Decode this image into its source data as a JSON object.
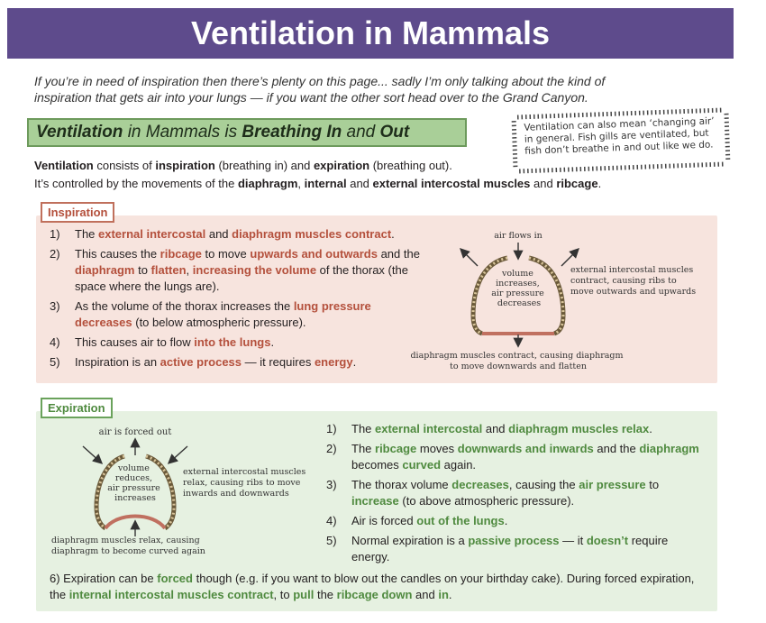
{
  "title": "Ventilation in Mammals",
  "intro": "If you’re in need of inspiration then there’s plenty on this page... sadly I’m only talking about the kind of inspiration that gets air into your lungs — if you want the other sort head over to the Grand Canyon.",
  "subheading": {
    "p1": "Ventilation",
    "p2": " in Mammals is ",
    "p3": "Breathing In",
    "p4": " and ",
    "p5": "Out"
  },
  "side_note": "Ventilation can also mean ‘changing air’ in general. Fish gills are ventilated, but fish don’t breathe in and out like we do.",
  "definition_line1": {
    "a": "Ventilation",
    "b": " consists of ",
    "c": "inspiration",
    "d": " (breathing in) and ",
    "e": "expiration",
    "f": " (breathing out)."
  },
  "definition_line2": {
    "a": "It’s controlled by the movements of the ",
    "b": "diaphragm",
    "c": ", ",
    "d": "internal",
    "e": " and ",
    "f": "external intercostal muscles",
    "g": " and ",
    "h": "ribcage",
    "i": "."
  },
  "inspiration": {
    "label": "Inspiration",
    "steps": [
      {
        "n": "1)",
        "parts": [
          "The ",
          "external intercostal",
          " and ",
          "diaphragm muscles contract",
          "."
        ]
      },
      {
        "n": "2)",
        "parts": [
          "This causes the ",
          "ribcage",
          " to move ",
          "upwards and outwards",
          " and the ",
          "diaphragm",
          " to ",
          "flatten",
          ", ",
          "increasing the volume",
          " of the thorax (the space where the lungs are)."
        ]
      },
      {
        "n": "3)",
        "parts": [
          "As the volume of the thorax increases the ",
          "lung pressure decreases",
          " (to below atmospheric pressure)."
        ]
      },
      {
        "n": "4)",
        "parts": [
          "This causes air to flow ",
          "into the lungs",
          "."
        ]
      },
      {
        "n": "5)",
        "parts": [
          "Inspiration is an ",
          "active process",
          " — it requires ",
          "energy",
          "."
        ]
      }
    ],
    "diagram": {
      "air_label": "air flows in",
      "center_label": "volume increases, air pressure decreases",
      "side_label": "external intercostal muscles contract, causing ribs to move outwards and upwards",
      "bottom_label": "diaphragm muscles contract, causing diaphragm to move downwards and flatten"
    }
  },
  "expiration": {
    "label": "Expiration",
    "steps": [
      {
        "n": "1)",
        "parts": [
          "The ",
          "external intercostal",
          " and ",
          "diaphragm muscles relax",
          "."
        ]
      },
      {
        "n": "2)",
        "parts": [
          "The ",
          "ribcage",
          " moves ",
          "downwards and inwards",
          " and the ",
          "diaphragm",
          " becomes ",
          "curved",
          " again."
        ]
      },
      {
        "n": "3)",
        "parts": [
          "The thorax volume ",
          "decreases",
          ", causing the ",
          "air pressure",
          " to ",
          "increase",
          " (to above atmospheric pressure)."
        ]
      },
      {
        "n": "4)",
        "parts": [
          "Air is forced ",
          "out of the lungs",
          "."
        ]
      },
      {
        "n": "5)",
        "parts": [
          "Normal expiration is a ",
          "passive process",
          " — it ",
          "doesn’t",
          " require energy."
        ]
      }
    ],
    "step6": {
      "n": "6)",
      "parts": [
        "Expiration can be ",
        "forced",
        " though (e.g. if you want to blow out the candles on your birthday cake). During forced expiration, the ",
        "internal intercostal muscles contract",
        ", to ",
        "pull",
        " the ",
        "ribcage down",
        " and ",
        "in",
        "."
      ]
    },
    "diagram": {
      "air_label": "air is forced out",
      "center_label": "volume reduces, air pressure increases",
      "side_label": "external intercostal muscles relax, causing ribs to move inwards and downwards",
      "bottom_label": "diaphragm muscles relax, causing diaphragm to become curved again"
    }
  },
  "colors": {
    "banner": "#5e4b8c",
    "subhead_bg": "#a9cf98",
    "inspiration_accent": "#b4503c",
    "inspiration_bg": "#f7e4de",
    "expiration_accent": "#4f8a3f",
    "expiration_bg": "#e6f1e1"
  }
}
